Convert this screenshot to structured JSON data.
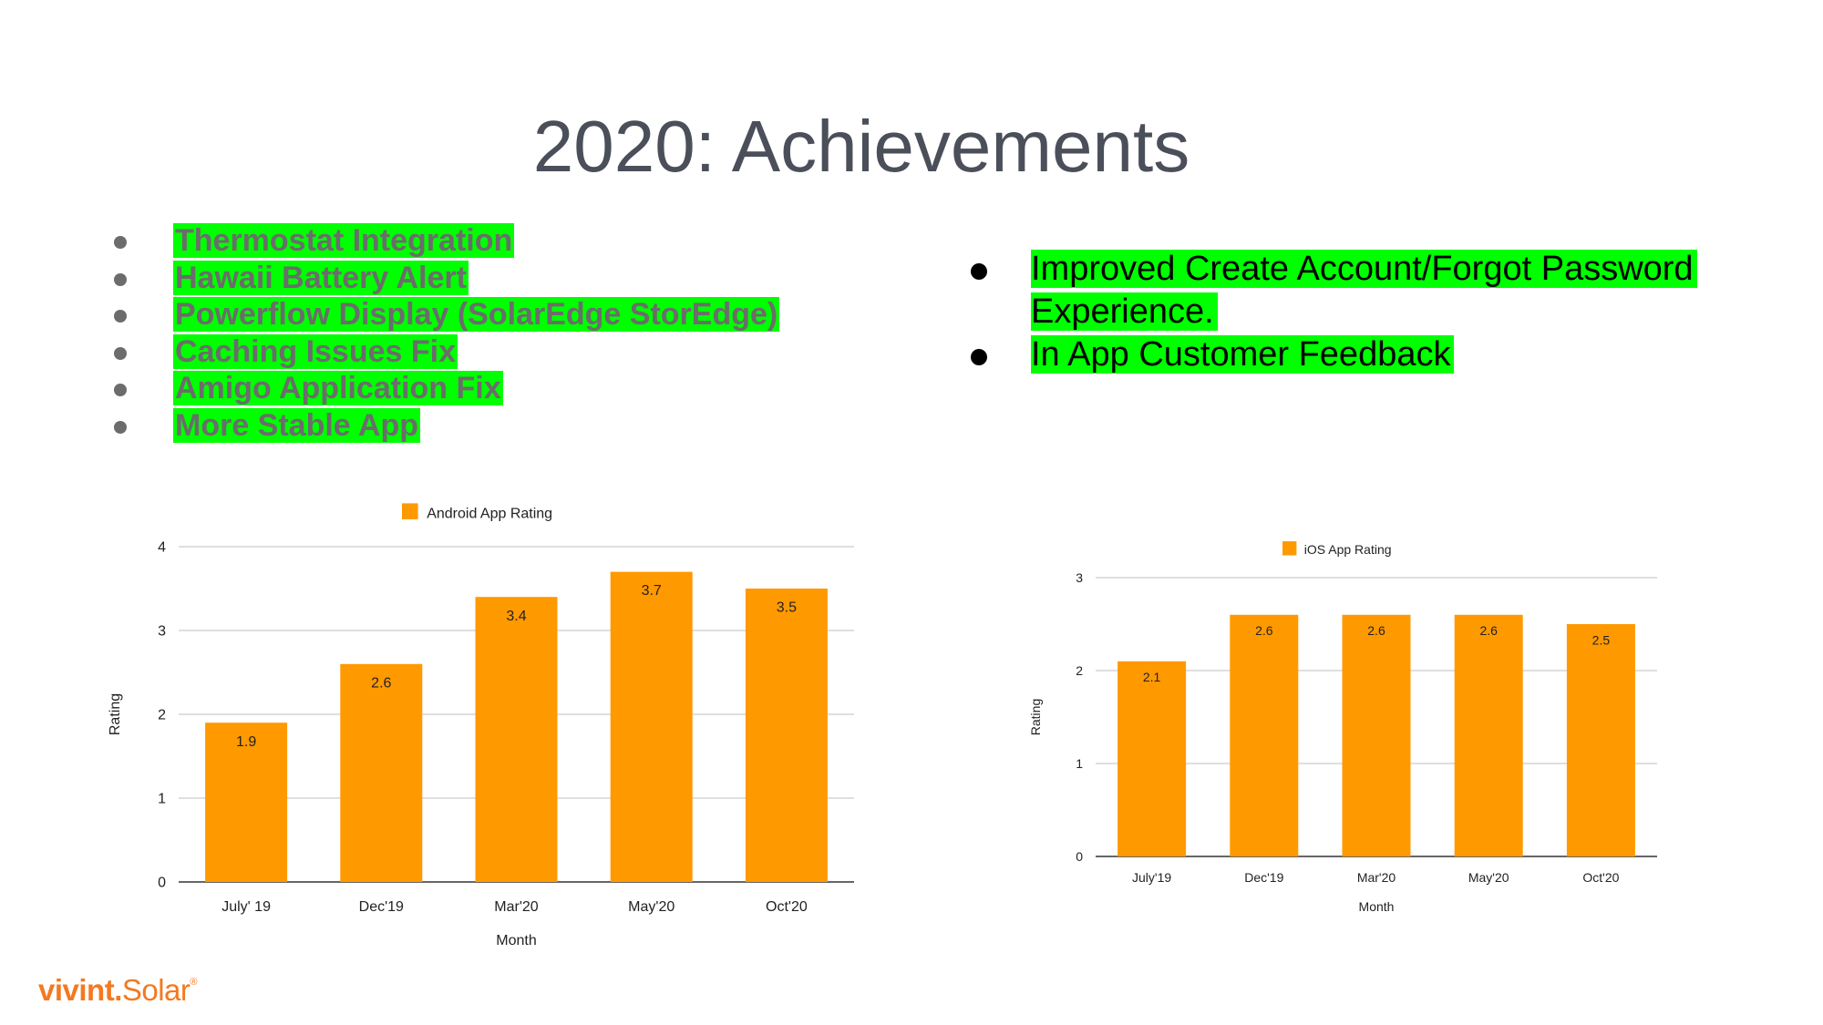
{
  "slide": {
    "title": "2020: Achievements",
    "left_bullets": [
      "Thermostat Integration",
      "Hawaii Battery Alert",
      "Powerflow Display (SolarEdge StorEdge)",
      "Caching Issues Fix",
      "Amigo Application Fix",
      "More Stable App"
    ],
    "right_bullets": [
      "Improved Create Account/Forgot Password Experience.",
      "In App Customer Feedback"
    ],
    "logo": {
      "bold": "vivint.",
      "rest": "Solar",
      "mark": "®"
    }
  },
  "colors": {
    "bar": "#ff9900",
    "highlight": "#00ff00",
    "title": "#4a4f5a",
    "logo": "#f47920"
  },
  "chart_data": [
    {
      "type": "bar",
      "categories": [
        "July' 19",
        "Dec'19",
        "Mar'20",
        "May'20",
        "Oct'20"
      ],
      "series": [
        {
          "name": "Android App Rating",
          "values": [
            1.9,
            2.6,
            3.4,
            3.7,
            3.5
          ]
        }
      ],
      "data_labels": [
        "1.9",
        "2.6",
        "3.4",
        "3.7",
        "3.5"
      ],
      "yticks": [
        "0",
        "1",
        "2",
        "3",
        "4"
      ],
      "ylim": [
        0,
        4
      ],
      "xlabel": "Month",
      "ylabel": "Rating",
      "legend": "top",
      "grid": true
    },
    {
      "type": "bar",
      "categories": [
        "July'19",
        "Dec'19",
        "Mar'20",
        "May'20",
        "Oct'20"
      ],
      "series": [
        {
          "name": "iOS App Rating",
          "values": [
            2.1,
            2.6,
            2.6,
            2.6,
            2.5
          ]
        }
      ],
      "data_labels": [
        "2.1",
        "2.6",
        "2.6",
        "2.6",
        "2.5"
      ],
      "yticks": [
        "0",
        "1",
        "2",
        "3"
      ],
      "ylim": [
        0,
        3
      ],
      "xlabel": "Month",
      "ylabel": "Rating",
      "legend": "top",
      "grid": true
    }
  ]
}
